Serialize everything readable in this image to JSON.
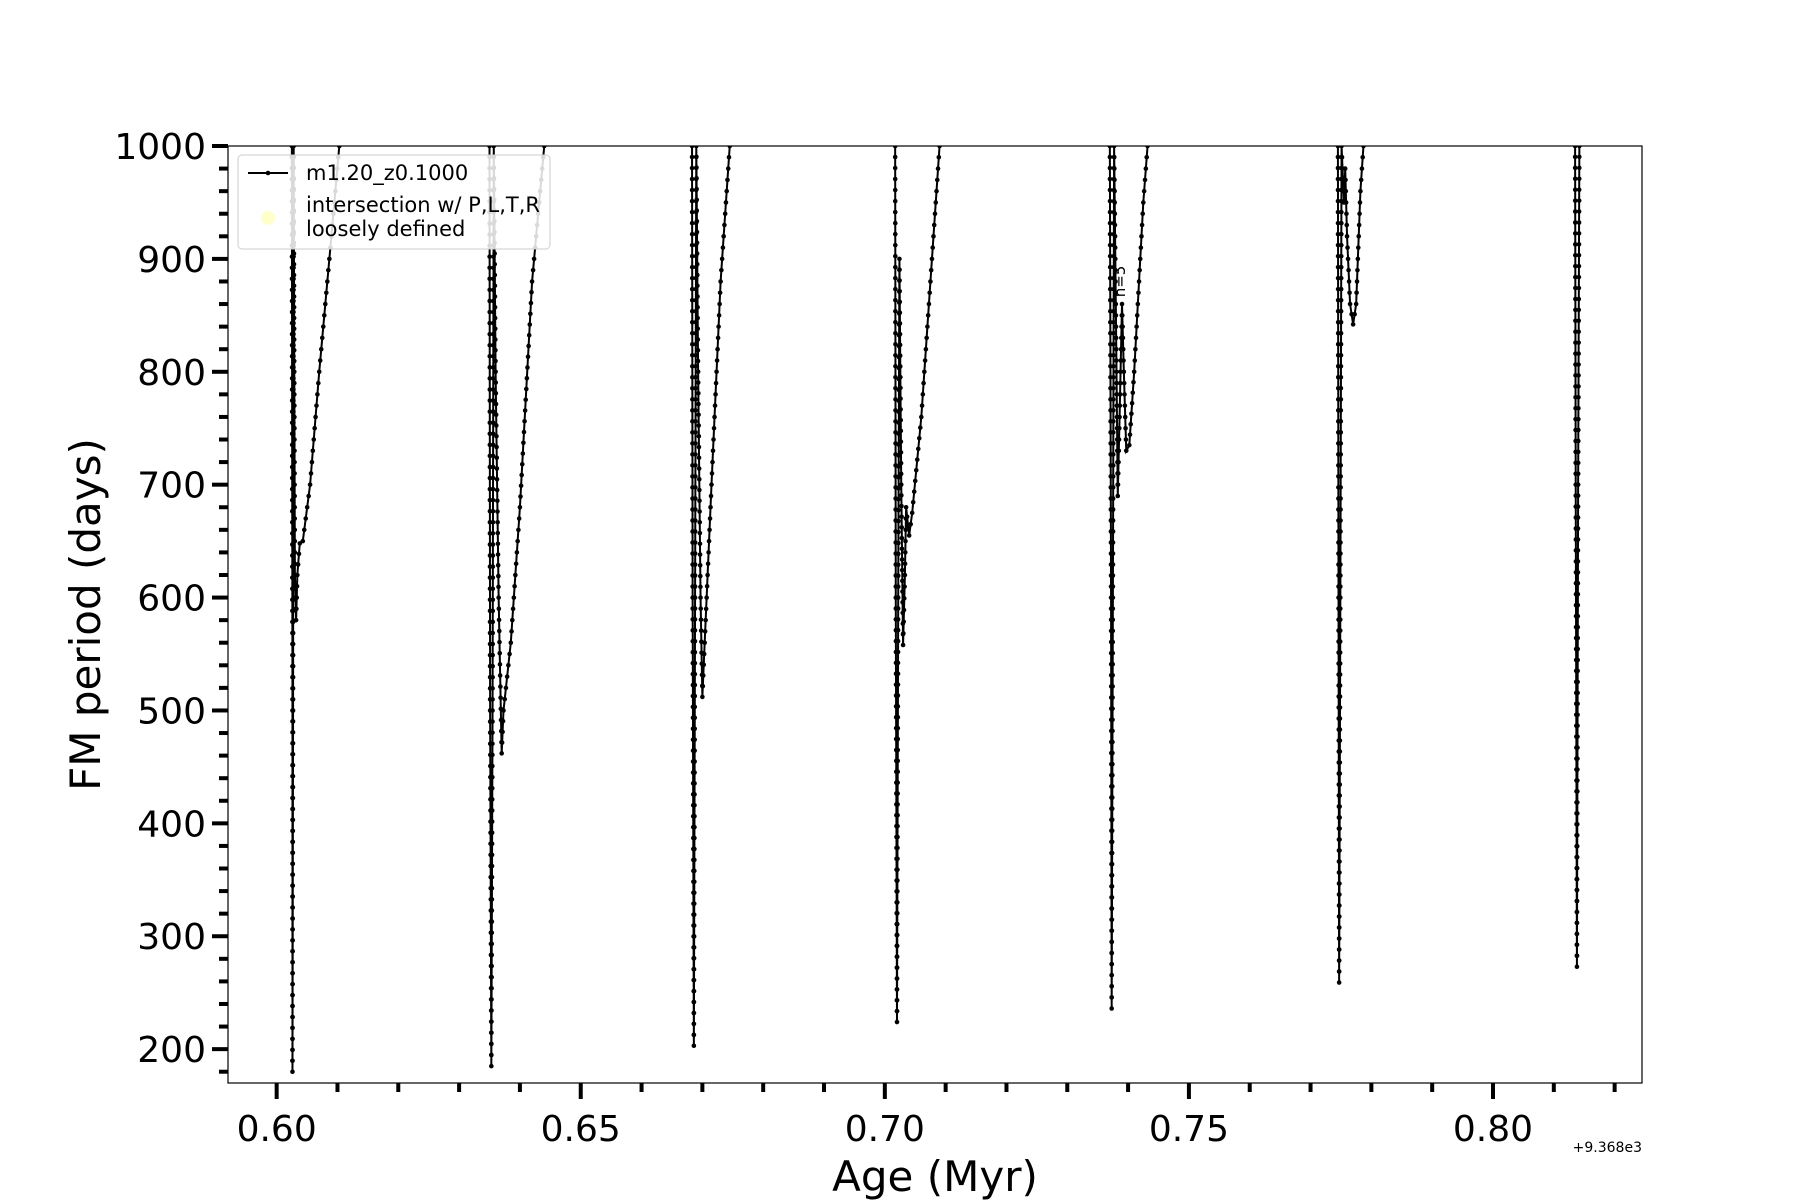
{
  "chart_data": {
    "type": "line",
    "title": "",
    "xlabel": "Age (Myr)",
    "ylabel": "FM period (days)",
    "x_offset_label": "+9.368e3",
    "xlim": [
      0.592,
      0.8245
    ],
    "ylim": [
      170,
      1000
    ],
    "x_ticks": [
      {
        "value": 0.6,
        "label": "0.60"
      },
      {
        "value": 0.65,
        "label": "0.65"
      },
      {
        "value": 0.7,
        "label": "0.70"
      },
      {
        "value": 0.75,
        "label": "0.75"
      },
      {
        "value": 0.8,
        "label": "0.80"
      }
    ],
    "x_minor_step": 0.01,
    "y_ticks": [
      {
        "value": 200,
        "label": "200"
      },
      {
        "value": 300,
        "label": "300"
      },
      {
        "value": 400,
        "label": "400"
      },
      {
        "value": 500,
        "label": "500"
      },
      {
        "value": 600,
        "label": "600"
      },
      {
        "value": 700,
        "label": "700"
      },
      {
        "value": 800,
        "label": "800"
      },
      {
        "value": 900,
        "label": "900"
      },
      {
        "value": 1000,
        "label": "1000"
      }
    ],
    "y_minor_step": 20,
    "grid": false,
    "legend": {
      "placement": "top-left",
      "entries": [
        {
          "label": "m1.20_z0.1000",
          "marker": "line-dot",
          "color": "#000000"
        },
        {
          "label": "intersection w/ P,L,T,R\nloosely defined",
          "marker": "circle",
          "color": "#ffffcc"
        }
      ]
    },
    "annotations": [
      {
        "text": "n=5",
        "x": 0.7395,
        "y": 880,
        "rotation": -90
      }
    ],
    "series": [
      {
        "name": "m1.20_z0.1000",
        "color": "#000000",
        "segments": [
          [
            [
              0.6025,
              1000
            ],
            [
              0.6026,
              500
            ],
            [
              0.6026,
              180
            ],
            [
              0.6027,
              500
            ],
            [
              0.6028,
              1000
            ],
            [
              0.6029,
              800
            ],
            [
              0.603,
              620
            ],
            [
              0.6032,
              580
            ],
            [
              0.6034,
              620
            ],
            [
              0.6038,
              648
            ],
            [
              0.6043,
              650
            ],
            [
              0.6055,
              700
            ],
            [
              0.607,
              800
            ],
            [
              0.609,
              920
            ],
            [
              0.6103,
              1000
            ]
          ],
          [
            [
              0.635,
              1000
            ],
            [
              0.6351,
              500
            ],
            [
              0.6353,
              185
            ],
            [
              0.6355,
              500
            ],
            [
              0.6357,
              1000
            ],
            [
              0.636,
              800
            ],
            [
              0.6365,
              600
            ],
            [
              0.637,
              462
            ],
            [
              0.6373,
              500
            ],
            [
              0.6385,
              560
            ],
            [
              0.64,
              680
            ],
            [
              0.642,
              880
            ],
            [
              0.644,
              1000
            ]
          ],
          [
            [
              0.6683,
              1000
            ],
            [
              0.6684,
              600
            ],
            [
              0.6686,
              203
            ],
            [
              0.6688,
              600
            ],
            [
              0.669,
              1000
            ],
            [
              0.6693,
              800
            ],
            [
              0.6697,
              600
            ],
            [
              0.67,
              512
            ],
            [
              0.6703,
              550
            ],
            [
              0.6715,
              700
            ],
            [
              0.673,
              880
            ],
            [
              0.6745,
              1000
            ]
          ],
          [
            [
              0.7017,
              1000
            ],
            [
              0.7018,
              600
            ],
            [
              0.702,
              224
            ],
            [
              0.7022,
              600
            ],
            [
              0.7024,
              900
            ],
            [
              0.7027,
              700
            ],
            [
              0.703,
              558
            ],
            [
              0.7033,
              620
            ],
            [
              0.7035,
              680
            ],
            [
              0.704,
              655
            ],
            [
              0.7045,
              675
            ],
            [
              0.706,
              760
            ],
            [
              0.708,
              920
            ],
            [
              0.709,
              1000
            ]
          ],
          [
            [
              0.737,
              1000
            ],
            [
              0.7372,
              600
            ],
            [
              0.7373,
              236
            ],
            [
              0.7375,
              600
            ],
            [
              0.7377,
              1000
            ],
            [
              0.738,
              850
            ],
            [
              0.7383,
              690
            ],
            [
              0.7386,
              760
            ],
            [
              0.739,
              860
            ],
            [
              0.7393,
              800
            ],
            [
              0.7397,
              730
            ],
            [
              0.7402,
              735
            ],
            [
              0.741,
              800
            ],
            [
              0.7425,
              950
            ],
            [
              0.7432,
              1000
            ]
          ],
          [
            [
              0.7745,
              1000
            ],
            [
              0.7746,
              600
            ],
            [
              0.7747,
              259
            ],
            [
              0.7749,
              600
            ],
            [
              0.7751,
              1000
            ],
            [
              0.7755,
              950
            ],
            [
              0.7757,
              980
            ],
            [
              0.776,
              920
            ],
            [
              0.7765,
              860
            ],
            [
              0.777,
              842
            ],
            [
              0.7775,
              860
            ],
            [
              0.7782,
              960
            ],
            [
              0.7787,
              1000
            ]
          ],
          [
            [
              0.8135,
              1000
            ],
            [
              0.8136,
              700
            ],
            [
              0.8138,
              273
            ],
            [
              0.814,
              700
            ],
            [
              0.8142,
              1000
            ]
          ]
        ]
      }
    ]
  }
}
